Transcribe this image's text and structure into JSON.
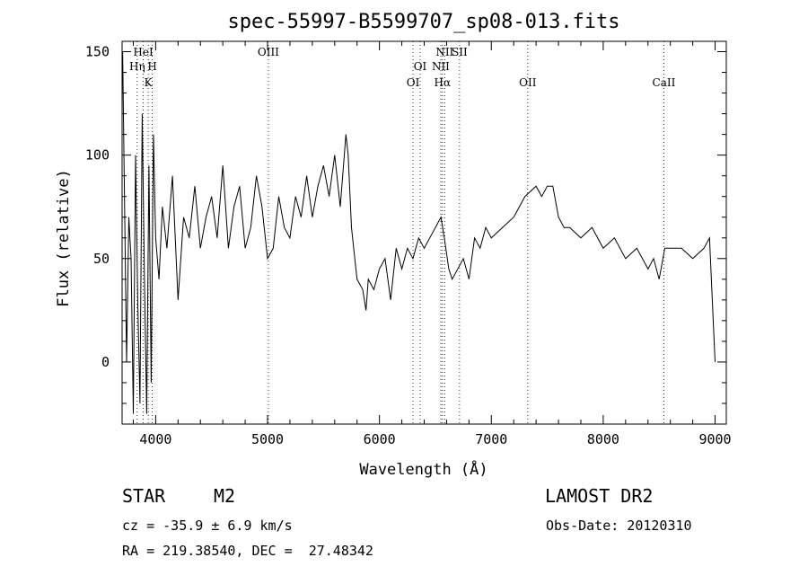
{
  "chart_data": {
    "type": "line",
    "title": "spec-55997-B5599707_sp08-013.fits",
    "xlabel": "Wavelength (Å)",
    "ylabel": "Flux (relative)",
    "xlim": [
      3700,
      9100
    ],
    "ylim": [
      -30,
      155
    ],
    "x_ticks": [
      4000,
      5000,
      6000,
      7000,
      8000,
      9000
    ],
    "y_ticks": [
      0,
      50,
      100,
      150
    ],
    "grid": false,
    "emission_lines": [
      {
        "name": "HeI",
        "wavelength": 3889,
        "row": 0
      },
      {
        "name": "Hη",
        "wavelength": 3835,
        "row": 1
      },
      {
        "name": "H",
        "wavelength": 3970,
        "row": 1
      },
      {
        "name": "K",
        "wavelength": 3934,
        "row": 2
      },
      {
        "name": "OIII",
        "wavelength": 5007,
        "row": 0
      },
      {
        "name": "OI",
        "wavelength": 6364,
        "row": 1
      },
      {
        "name": "OI",
        "wavelength": 6300,
        "row": 2
      },
      {
        "name": "NII",
        "wavelength": 6583,
        "row": 0
      },
      {
        "name": "SII",
        "wavelength": 6716,
        "row": 0
      },
      {
        "name": "NII",
        "wavelength": 6548,
        "row": 1
      },
      {
        "name": "Hα",
        "wavelength": 6563,
        "row": 2
      },
      {
        "name": "OII",
        "wavelength": 7325,
        "row": 2
      },
      {
        "name": "CaII",
        "wavelength": 8542,
        "row": 2
      }
    ],
    "series": [
      {
        "x": [
          3705,
          3740,
          3760,
          3780,
          3800,
          3820,
          3840,
          3860,
          3880,
          3900,
          3920,
          3940,
          3960,
          3980,
          4000,
          4030,
          4060,
          4100,
          4150,
          4200,
          4250,
          4300,
          4350,
          4400,
          4450,
          4500,
          4550,
          4600,
          4650,
          4700,
          4750,
          4800,
          4850,
          4900,
          4950,
          5000,
          5050,
          5100,
          5150,
          5200,
          5250,
          5300,
          5350,
          5400,
          5450,
          5500,
          5550,
          5600,
          5650,
          5700,
          5720,
          5750,
          5780,
          5800,
          5850,
          5880,
          5900,
          5950,
          6000,
          6050,
          6100,
          6150,
          6200,
          6250,
          6300,
          6350,
          6400,
          6450,
          6500,
          6550,
          6580,
          6620,
          6650,
          6700,
          6750,
          6800,
          6850,
          6900,
          6950,
          7000,
          7100,
          7200,
          7300,
          7400,
          7450,
          7500,
          7550,
          7600,
          7650,
          7700,
          7800,
          7900,
          8000,
          8100,
          8200,
          8300,
          8400,
          8450,
          8500,
          8550,
          8600,
          8700,
          8800,
          8900,
          8950,
          9000
        ],
        "y": [
          150,
          0,
          70,
          50,
          -25,
          100,
          30,
          -20,
          120,
          40,
          -25,
          95,
          -10,
          110,
          60,
          40,
          75,
          55,
          90,
          30,
          70,
          60,
          85,
          55,
          70,
          80,
          60,
          95,
          55,
          75,
          85,
          55,
          65,
          90,
          75,
          50,
          55,
          80,
          65,
          60,
          80,
          70,
          90,
          70,
          85,
          95,
          80,
          100,
          75,
          110,
          100,
          65,
          50,
          40,
          35,
          25,
          40,
          35,
          45,
          50,
          30,
          55,
          45,
          55,
          50,
          60,
          55,
          60,
          65,
          70,
          60,
          45,
          40,
          45,
          50,
          40,
          60,
          55,
          65,
          60,
          65,
          70,
          80,
          85,
          80,
          85,
          85,
          70,
          65,
          65,
          60,
          65,
          55,
          60,
          50,
          55,
          45,
          50,
          40,
          55,
          55,
          55,
          50,
          55,
          60,
          0
        ]
      }
    ]
  },
  "info": {
    "class_label": "STAR",
    "subclass": "M2",
    "survey": "LAMOST DR2",
    "cz": "cz = -35.9 ± 6.9 km/s",
    "obs_date": "Obs-Date: 20120310",
    "coords": "RA = 219.38540, DEC =  27.48342"
  }
}
